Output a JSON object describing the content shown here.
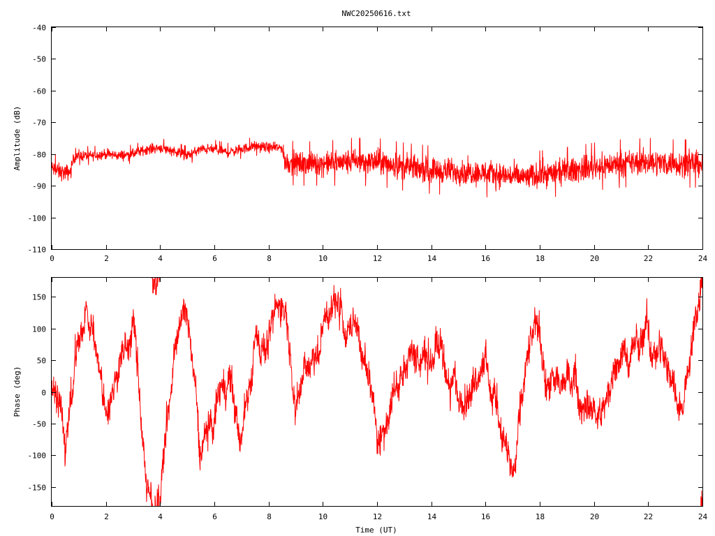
{
  "title": "NWC20250616.txt",
  "colors": {
    "trace": "#ff0000",
    "axis": "#000000",
    "background": "#ffffff"
  },
  "chart_data": [
    {
      "type": "line",
      "name": "amplitude",
      "title": "NWC20250616.txt",
      "xlabel": "",
      "ylabel": "Amplitude (dB)",
      "xlim": [
        0,
        24
      ],
      "ylim": [
        -110,
        -40
      ],
      "grid": false,
      "x_ticks": [
        0,
        2,
        4,
        6,
        8,
        10,
        12,
        14,
        16,
        18,
        20,
        22,
        24
      ],
      "y_ticks": [
        -110,
        -100,
        -90,
        -80,
        -70,
        -60,
        -50,
        -40
      ],
      "x_tick_labels": [
        "0",
        "2",
        "4",
        "6",
        "8",
        "10",
        "12",
        "14",
        "16",
        "18",
        "20",
        "22",
        "24"
      ],
      "y_tick_labels": [
        "-110",
        "-100",
        "-90",
        "-80",
        "-70",
        "-60",
        "-50",
        "-40"
      ],
      "series": [
        {
          "x": [
            0,
            0.25,
            0.5,
            0.7,
            0.8,
            1,
            1.5,
            2,
            2.5,
            3,
            3.5,
            4,
            4.5,
            5,
            5.5,
            6,
            6.5,
            7,
            7.5,
            8,
            8.5,
            8.6,
            9,
            10,
            11,
            12,
            13,
            14,
            15,
            16,
            17,
            17.5,
            18,
            19,
            20,
            21,
            22,
            23,
            24
          ],
          "values": [
            -84.5,
            -85.5,
            -86,
            -85.5,
            -81.5,
            -80.5,
            -80.5,
            -80,
            -80.5,
            -80,
            -78.5,
            -78,
            -79,
            -80.5,
            -78.5,
            -78.5,
            -79.5,
            -78.5,
            -77.5,
            -78,
            -78,
            -82.5,
            -83,
            -83,
            -82.5,
            -82.5,
            -84,
            -85,
            -85.5,
            -86,
            -87,
            -87.5,
            -86.5,
            -85.5,
            -84,
            -83,
            -82.5,
            -83,
            -83
          ],
          "noise": [
            2.5,
            2.5,
            2.5,
            2.5,
            1.5,
            1.5,
            1.5,
            1.5,
            1.5,
            1.5,
            1.5,
            1.5,
            1.5,
            1.5,
            1.5,
            1.5,
            1.5,
            1.5,
            1.5,
            1.5,
            1.5,
            3.5,
            3.5,
            3.5,
            3.8,
            3.8,
            3.8,
            3.8,
            3.8,
            3.8,
            3.8,
            3.8,
            3.8,
            3.8,
            3.8,
            3.8,
            3.8,
            3.8,
            3.8
          ]
        }
      ]
    },
    {
      "type": "line",
      "name": "phase",
      "title": "",
      "xlabel": "Time (UT)",
      "ylabel": "Phase (deg)",
      "xlim": [
        0,
        24
      ],
      "ylim": [
        -180,
        180
      ],
      "grid": false,
      "x_ticks": [
        0,
        2,
        4,
        6,
        8,
        10,
        12,
        14,
        16,
        18,
        20,
        22,
        24
      ],
      "y_ticks": [
        -150,
        -100,
        -50,
        0,
        50,
        100,
        150
      ],
      "x_tick_labels": [
        "0",
        "2",
        "4",
        "6",
        "8",
        "10",
        "12",
        "14",
        "16",
        "18",
        "20",
        "22",
        "24"
      ],
      "y_tick_labels": [
        "-150",
        "-100",
        "-50",
        "0",
        "50",
        "100",
        "150"
      ],
      "series": [
        {
          "x": [
            0,
            0.5,
            1,
            1.5,
            2,
            2.5,
            3,
            3.5,
            4,
            4.5,
            5,
            5.5,
            6,
            6.5,
            7,
            7.5,
            8,
            8.5,
            9,
            10,
            11,
            12,
            13,
            14,
            15,
            16,
            17,
            18,
            19,
            20,
            21,
            22,
            23,
            24
          ],
          "values": [
            0,
            -80,
            60,
            120,
            -40,
            80,
            160,
            -100,
            -120,
            60,
            120,
            -130,
            -60,
            40,
            -80,
            40,
            90,
            150,
            -30,
            100,
            120,
            -80,
            60,
            40,
            -60,
            100,
            -90,
            80,
            -40,
            -60,
            60,
            80,
            -40,
            150
          ],
          "drift_deg_per_hour": 250,
          "noise_deg": 35
        }
      ]
    }
  ]
}
